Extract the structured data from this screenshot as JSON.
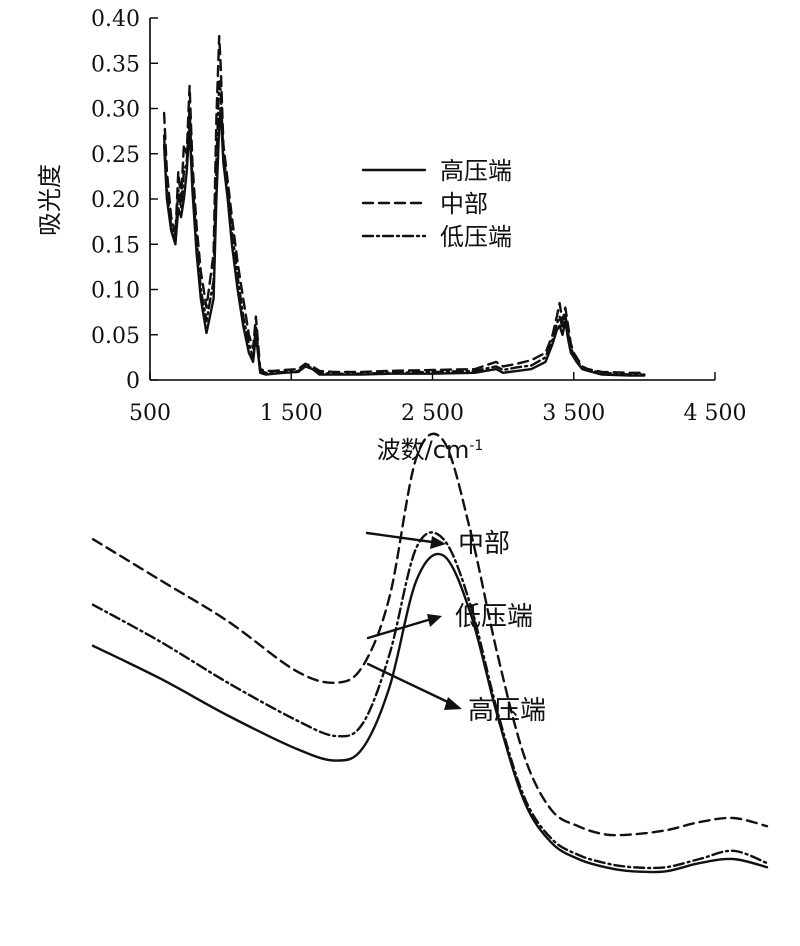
{
  "chart_data": [
    {
      "type": "line",
      "xlabel": "波数/cm",
      "xlabel_sup": "-1",
      "ylabel": "吸光度",
      "xlim": [
        500,
        4500
      ],
      "ylim": [
        0,
        0.4
      ],
      "xticks": [
        500,
        1500,
        2500,
        3500,
        4500
      ],
      "xtick_labels": [
        "500",
        "1 500",
        "2 500",
        "3 500",
        "4 500"
      ],
      "yticks": [
        0,
        0.05,
        0.1,
        0.15,
        0.2,
        0.25,
        0.3,
        0.35,
        0.4
      ],
      "ytick_labels": [
        "0",
        "0.05",
        "0.10",
        "0.15",
        "0.20",
        "0.25",
        "0.30",
        "0.35",
        "0.40"
      ],
      "legend_position": "upper-middle",
      "grid": false,
      "series": [
        {
          "name": "高压端",
          "style": "solid",
          "x": [
            600,
            620,
            650,
            680,
            700,
            720,
            740,
            760,
            780,
            800,
            830,
            860,
            900,
            950,
            970,
            990,
            1000,
            1020,
            1050,
            1080,
            1120,
            1160,
            1200,
            1230,
            1250,
            1280,
            1320,
            1380,
            1450,
            1550,
            1600,
            1650,
            1700,
            1800,
            2000,
            2200,
            2500,
            2800,
            2950,
            3000,
            3100,
            3200,
            3300,
            3350,
            3380,
            3400,
            3420,
            3440,
            3460,
            3480,
            3500,
            3520,
            3560,
            3600,
            3700,
            3900,
            4000
          ],
          "y": [
            0.26,
            0.2,
            0.165,
            0.15,
            0.19,
            0.18,
            0.2,
            0.23,
            0.28,
            0.21,
            0.14,
            0.09,
            0.052,
            0.09,
            0.2,
            0.28,
            0.3,
            0.24,
            0.2,
            0.15,
            0.1,
            0.06,
            0.03,
            0.02,
            0.05,
            0.008,
            0.006,
            0.007,
            0.008,
            0.009,
            0.015,
            0.012,
            0.006,
            0.006,
            0.006,
            0.007,
            0.007,
            0.008,
            0.012,
            0.008,
            0.01,
            0.012,
            0.02,
            0.04,
            0.055,
            0.06,
            0.05,
            0.065,
            0.045,
            0.03,
            0.025,
            0.02,
            0.012,
            0.01,
            0.006,
            0.005,
            0.005
          ]
        },
        {
          "name": "中部",
          "style": "dashed",
          "x": [
            600,
            620,
            650,
            680,
            700,
            720,
            740,
            760,
            780,
            800,
            830,
            860,
            900,
            950,
            970,
            990,
            1000,
            1020,
            1050,
            1080,
            1120,
            1160,
            1200,
            1230,
            1250,
            1280,
            1320,
            1380,
            1450,
            1550,
            1600,
            1650,
            1700,
            1800,
            2000,
            2200,
            2500,
            2800,
            2950,
            3000,
            3100,
            3200,
            3300,
            3350,
            3380,
            3400,
            3420,
            3440,
            3460,
            3480,
            3500,
            3520,
            3560,
            3600,
            3700,
            3900,
            4000
          ],
          "y": [
            0.295,
            0.23,
            0.18,
            0.16,
            0.23,
            0.2,
            0.26,
            0.25,
            0.325,
            0.24,
            0.17,
            0.12,
            0.08,
            0.14,
            0.29,
            0.38,
            0.35,
            0.26,
            0.22,
            0.18,
            0.13,
            0.09,
            0.05,
            0.035,
            0.07,
            0.012,
            0.01,
            0.01,
            0.011,
            0.012,
            0.018,
            0.015,
            0.01,
            0.009,
            0.009,
            0.01,
            0.011,
            0.012,
            0.02,
            0.015,
            0.018,
            0.022,
            0.03,
            0.05,
            0.07,
            0.085,
            0.065,
            0.08,
            0.06,
            0.04,
            0.03,
            0.025,
            0.015,
            0.012,
            0.009,
            0.008,
            0.008
          ]
        },
        {
          "name": "低压端",
          "style": "dashdot",
          "x": [
            600,
            620,
            650,
            680,
            700,
            720,
            740,
            760,
            780,
            800,
            830,
            860,
            900,
            950,
            970,
            990,
            1000,
            1020,
            1050,
            1080,
            1120,
            1160,
            1200,
            1230,
            1250,
            1280,
            1320,
            1380,
            1450,
            1550,
            1600,
            1650,
            1700,
            1800,
            2000,
            2200,
            2500,
            2800,
            2950,
            3000,
            3100,
            3200,
            3300,
            3350,
            3380,
            3400,
            3420,
            3440,
            3460,
            3480,
            3500,
            3520,
            3560,
            3600,
            3700,
            3900,
            4000
          ],
          "y": [
            0.27,
            0.21,
            0.17,
            0.155,
            0.21,
            0.19,
            0.23,
            0.24,
            0.3,
            0.22,
            0.155,
            0.1,
            0.065,
            0.11,
            0.24,
            0.33,
            0.32,
            0.25,
            0.21,
            0.165,
            0.115,
            0.07,
            0.04,
            0.025,
            0.06,
            0.01,
            0.008,
            0.008,
            0.009,
            0.01,
            0.016,
            0.013,
            0.008,
            0.007,
            0.007,
            0.008,
            0.009,
            0.01,
            0.015,
            0.011,
            0.014,
            0.016,
            0.025,
            0.045,
            0.062,
            0.07,
            0.058,
            0.072,
            0.052,
            0.035,
            0.028,
            0.022,
            0.014,
            0.011,
            0.008,
            0.006,
            0.006
          ]
        }
      ]
    },
    {
      "type": "line",
      "xlabel": "",
      "ylabel": "",
      "axes_visible": false,
      "xlim": [
        0,
        100
      ],
      "ylim": [
        0,
        100
      ],
      "series": [
        {
          "name": "高压端",
          "style": "solid",
          "x": [
            0,
            10,
            20,
            30,
            36,
            40,
            44,
            48,
            52,
            56,
            60,
            64,
            68,
            72,
            76,
            80,
            85,
            90,
            95,
            100
          ],
          "y": [
            62,
            54,
            45,
            37,
            34,
            37,
            52,
            78,
            84,
            70,
            45,
            24,
            14,
            10,
            8,
            7,
            7,
            9,
            10,
            8
          ]
        },
        {
          "name": "中部",
          "style": "dashed",
          "x": [
            0,
            10,
            20,
            30,
            36,
            40,
            44,
            48,
            52,
            56,
            60,
            64,
            68,
            72,
            76,
            80,
            85,
            90,
            95,
            100
          ],
          "y": [
            88,
            78,
            68,
            56,
            53,
            57,
            74,
            108,
            112,
            90,
            60,
            35,
            22,
            18,
            16,
            16,
            17,
            19,
            20,
            18
          ]
        },
        {
          "name": "低压端",
          "style": "dashdot",
          "x": [
            0,
            10,
            20,
            30,
            36,
            40,
            44,
            48,
            52,
            56,
            60,
            64,
            68,
            72,
            76,
            80,
            85,
            90,
            95,
            100
          ],
          "y": [
            72,
            63,
            53,
            44,
            40,
            43,
            60,
            86,
            88,
            72,
            46,
            25,
            15,
            11,
            9,
            8,
            8,
            10,
            12,
            9
          ]
        }
      ],
      "annotations": [
        {
          "text": "中部",
          "target_series": "中部"
        },
        {
          "text": "低压端",
          "target_series": "低压端"
        },
        {
          "text": "高压端",
          "target_series": "高压端"
        }
      ]
    }
  ]
}
